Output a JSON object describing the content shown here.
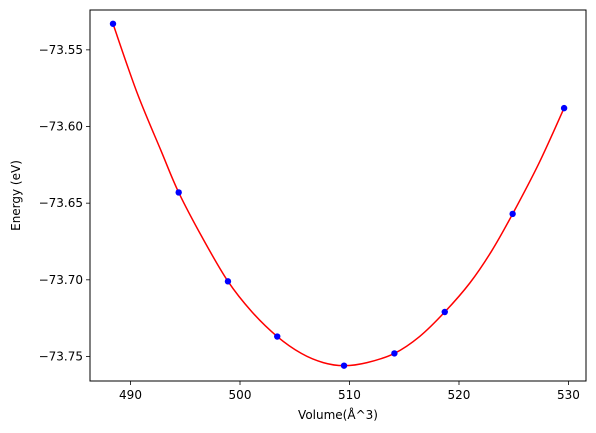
{
  "chart_data": {
    "type": "scatter",
    "xlabel": "Volume(Å^3)",
    "ylabel": "Energy (eV)",
    "xlim": [
      486.3,
      531.6
    ],
    "ylim": [
      -73.766,
      -73.524
    ],
    "x_ticks": [
      490,
      500,
      510,
      520,
      530
    ],
    "x_tick_labels": [
      "490",
      "500",
      "510",
      "520",
      "530"
    ],
    "y_ticks": [
      -73.55,
      -73.6,
      -73.65,
      -73.7,
      -73.75
    ],
    "y_tick_labels": [
      "−73.55",
      "−73.60",
      "−73.65",
      "−73.70",
      "−73.75"
    ],
    "grid": false,
    "series": [
      {
        "type": "scatter",
        "color": "#0000ff",
        "points": [
          {
            "x": 488.4,
            "y": -73.533
          },
          {
            "x": 494.4,
            "y": -73.643
          },
          {
            "x": 498.9,
            "y": -73.701
          },
          {
            "x": 503.4,
            "y": -73.737
          },
          {
            "x": 509.5,
            "y": -73.756
          },
          {
            "x": 514.1,
            "y": -73.748
          },
          {
            "x": 518.7,
            "y": -73.721
          },
          {
            "x": 524.9,
            "y": -73.657
          },
          {
            "x": 529.6,
            "y": -73.588
          }
        ]
      },
      {
        "type": "line",
        "color": "#ff0000",
        "points": [
          {
            "x": 488.4,
            "y": -73.533
          },
          {
            "x": 490.6,
            "y": -73.578
          },
          {
            "x": 492.8,
            "y": -73.616
          },
          {
            "x": 494.4,
            "y": -73.643
          },
          {
            "x": 496.6,
            "y": -73.673
          },
          {
            "x": 498.9,
            "y": -73.701
          },
          {
            "x": 501.1,
            "y": -73.721
          },
          {
            "x": 503.4,
            "y": -73.737
          },
          {
            "x": 505.6,
            "y": -73.748
          },
          {
            "x": 507.6,
            "y": -73.754
          },
          {
            "x": 509.5,
            "y": -73.756
          },
          {
            "x": 511.6,
            "y": -73.754
          },
          {
            "x": 514.1,
            "y": -73.748
          },
          {
            "x": 516.4,
            "y": -73.737
          },
          {
            "x": 518.7,
            "y": -73.721
          },
          {
            "x": 521.0,
            "y": -73.702
          },
          {
            "x": 523.0,
            "y": -73.681
          },
          {
            "x": 524.9,
            "y": -73.657
          },
          {
            "x": 527.3,
            "y": -73.624
          },
          {
            "x": 529.6,
            "y": -73.588
          }
        ]
      }
    ]
  }
}
